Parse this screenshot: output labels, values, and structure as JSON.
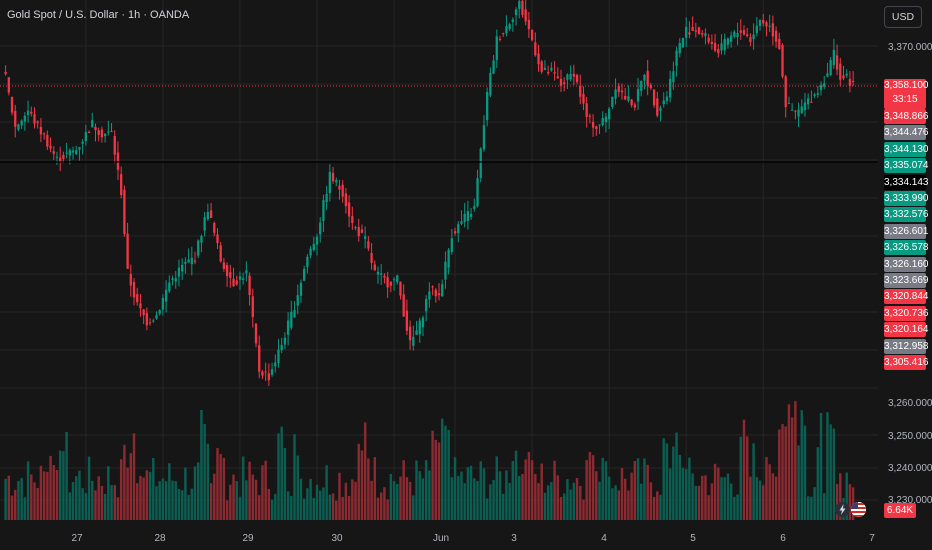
{
  "header": {
    "title": "Gold Spot / U.S. Dollar · 1h · OANDA",
    "currency_button": "USD"
  },
  "colors": {
    "up": "#089981",
    "down": "#f23645",
    "background": "#161616",
    "grid": "#262626",
    "neutral_badge": "#787b86",
    "horizontal_line": "#000000"
  },
  "price_badges": [
    {
      "label": "3,358.100",
      "sub": "33:15",
      "kind": "down"
    },
    {
      "label": "3,348.866",
      "kind": "down"
    },
    {
      "label": "3,344.476",
      "kind": "neutral"
    },
    {
      "label": "3,344.130",
      "kind": "up"
    },
    {
      "label": "3,335.074",
      "kind": "up"
    },
    {
      "label": "3,334.143",
      "kind": "black"
    },
    {
      "label": "3,333.990",
      "kind": "up"
    },
    {
      "label": "3,332.576",
      "kind": "up"
    },
    {
      "label": "3,326.601",
      "kind": "neutral"
    },
    {
      "label": "3,326.578",
      "kind": "up"
    },
    {
      "label": "3,326.160",
      "kind": "neutral"
    },
    {
      "label": "3,323.669",
      "kind": "neutral"
    },
    {
      "label": "3,320.844",
      "kind": "down"
    },
    {
      "label": "3,320.736",
      "kind": "down"
    },
    {
      "label": "3,320.164",
      "kind": "down"
    },
    {
      "label": "3,312.958",
      "kind": "neutral"
    },
    {
      "label": "3,305.416",
      "kind": "down"
    }
  ],
  "volume_badge": "6.64K",
  "icons": {
    "lightning": "lightning-icon",
    "flag": "us-flag-icon"
  },
  "chart_data": {
    "type": "candlestick",
    "x_labels": [
      "27",
      "28",
      "29",
      "30",
      "Jun",
      "3",
      "4",
      "5",
      "6",
      "7"
    ],
    "y_ticks": [
      "3,370.000",
      "3,260.000",
      "3,250.000",
      "3,240.000",
      "3,230.000"
    ],
    "ylim": [
      3228,
      3384
    ],
    "current_price": 3358.1,
    "countdown": "33:15",
    "horizontal_line_price": 3334.143,
    "grid": true,
    "anchors": [
      [
        0,
        3360
      ],
      [
        3,
        3345
      ],
      [
        7,
        3350
      ],
      [
        12,
        3342
      ],
      [
        16,
        3335
      ],
      [
        22,
        3338
      ],
      [
        27,
        3346
      ],
      [
        30,
        3343
      ],
      [
        33,
        3343
      ],
      [
        36,
        3325
      ],
      [
        38,
        3300
      ],
      [
        41,
        3290
      ],
      [
        44,
        3285
      ],
      [
        47,
        3287
      ],
      [
        51,
        3297
      ],
      [
        55,
        3302
      ],
      [
        59,
        3305
      ],
      [
        63,
        3320
      ],
      [
        67,
        3304
      ],
      [
        71,
        3297
      ],
      [
        75,
        3300
      ],
      [
        79,
        3270
      ],
      [
        82,
        3268
      ],
      [
        86,
        3278
      ],
      [
        90,
        3290
      ],
      [
        94,
        3305
      ],
      [
        97,
        3312
      ],
      [
        101,
        3330
      ],
      [
        105,
        3325
      ],
      [
        108,
        3315
      ],
      [
        112,
        3310
      ],
      [
        115,
        3300
      ],
      [
        119,
        3297
      ],
      [
        122,
        3298
      ],
      [
        126,
        3278
      ],
      [
        129,
        3284
      ],
      [
        132,
        3295
      ],
      [
        135,
        3293
      ],
      [
        139,
        3312
      ],
      [
        143,
        3317
      ],
      [
        146,
        3320
      ],
      [
        150,
        3355
      ],
      [
        153,
        3372
      ],
      [
        156,
        3376
      ],
      [
        160,
        3383
      ],
      [
        163,
        3375
      ],
      [
        167,
        3362
      ],
      [
        170,
        3362
      ],
      [
        173,
        3358
      ],
      [
        177,
        3362
      ],
      [
        181,
        3348
      ],
      [
        184,
        3345
      ],
      [
        187,
        3348
      ],
      [
        190,
        3358
      ],
      [
        193,
        3354
      ],
      [
        196,
        3352
      ],
      [
        199,
        3362
      ],
      [
        203,
        3350
      ],
      [
        206,
        3355
      ],
      [
        209,
        3368
      ],
      [
        212,
        3375
      ],
      [
        215,
        3375
      ],
      [
        219,
        3372
      ],
      [
        222,
        3368
      ],
      [
        225,
        3372
      ],
      [
        229,
        3375
      ],
      [
        232,
        3372
      ],
      [
        235,
        3378
      ],
      [
        238,
        3376
      ],
      [
        241,
        3370
      ],
      [
        243,
        3352
      ],
      [
        246,
        3349
      ],
      [
        249,
        3352
      ],
      [
        252,
        3355
      ],
      [
        254,
        3358
      ],
      [
        256,
        3362
      ],
      [
        258,
        3368
      ],
      [
        260,
        3360
      ],
      [
        262,
        3360
      ],
      [
        264,
        3358
      ]
    ],
    "day_separators": [
      25,
      49,
      73,
      97,
      121,
      140,
      164,
      188,
      212,
      236
    ],
    "volume_ymax": 100
  }
}
